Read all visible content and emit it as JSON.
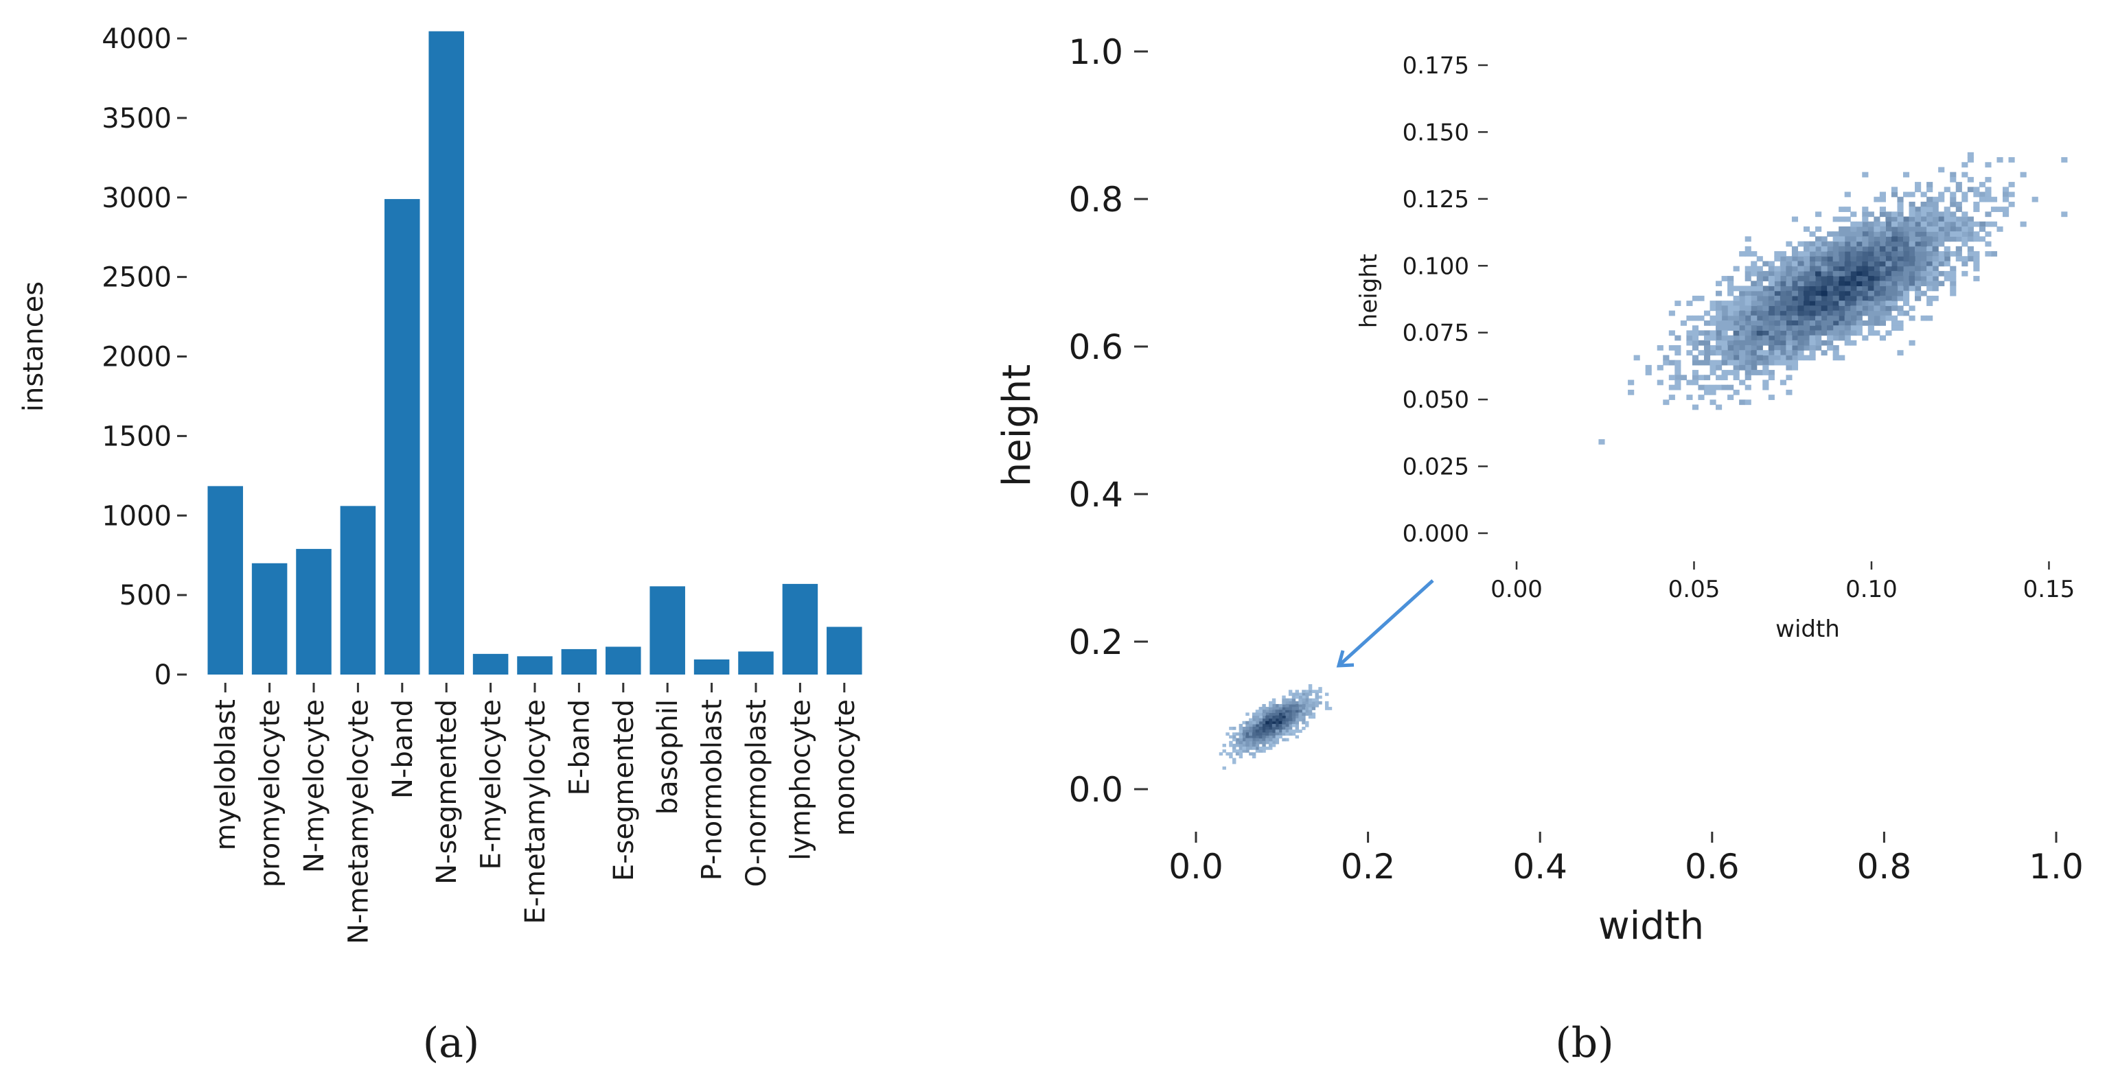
{
  "figure": {
    "panel_a_label": "(a)",
    "panel_b_label": "(b)"
  },
  "chart_data": [
    {
      "id": "a",
      "type": "bar",
      "ylabel": "instances",
      "xlabel": "",
      "ylim": [
        0,
        4000
      ],
      "yticks": [
        0,
        500,
        1000,
        1500,
        2000,
        2500,
        3000,
        3500,
        4000
      ],
      "categories": [
        "myeloblast",
        "promyelocyte",
        "N-myelocyte",
        "N-metamyelocyte",
        "N-band",
        "N-segmented",
        "E-myelocyte",
        "E-metamylocyte",
        "E-band",
        "E-segmented",
        "basophil",
        "P-normoblast",
        "O-normoplast",
        "lymphocyte",
        "monocyte"
      ],
      "values": [
        1185,
        700,
        790,
        1060,
        2990,
        4045,
        130,
        115,
        160,
        175,
        555,
        95,
        145,
        570,
        300
      ],
      "color": "#1f77b4"
    },
    {
      "id": "b-main",
      "type": "heatmap",
      "xlabel": "width",
      "ylabel": "height",
      "xlim": [
        0,
        1.0
      ],
      "ylim": [
        0,
        1.0
      ],
      "xticks": [
        "0.0",
        "0.2",
        "0.4",
        "0.6",
        "0.8",
        "1.0"
      ],
      "yticks": [
        "0.0",
        "0.2",
        "0.4",
        "0.6",
        "0.8",
        "1.0"
      ],
      "center": [
        0.09,
        0.09
      ],
      "spread": [
        0.02,
        0.016
      ],
      "color": "#3a78c8"
    },
    {
      "id": "b-inset",
      "type": "heatmap",
      "xlabel": "width",
      "ylabel": "height",
      "xlim": [
        0,
        0.165
      ],
      "ylim": [
        0,
        0.185
      ],
      "xticks": [
        "0.00",
        "0.05",
        "0.10",
        "0.15"
      ],
      "yticks": [
        "0.000",
        "0.025",
        "0.050",
        "0.075",
        "0.100",
        "0.125",
        "0.150",
        "0.175"
      ],
      "center": [
        0.09,
        0.092
      ],
      "spread": [
        0.017,
        0.014
      ],
      "color": "#3a78c8"
    }
  ]
}
